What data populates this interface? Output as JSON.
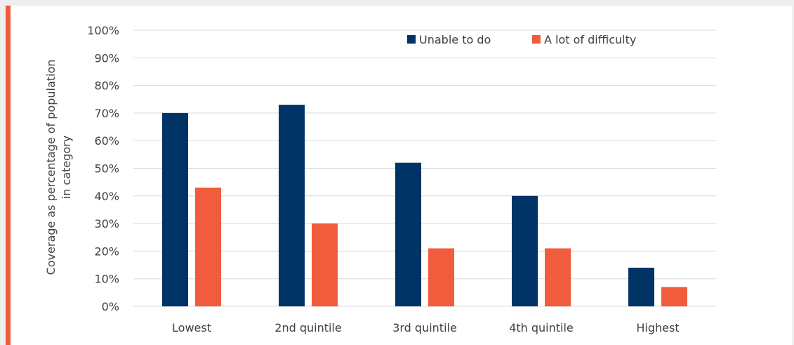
{
  "colors": {
    "accent": "#f05c3c",
    "series_unable": "#003366",
    "series_difficulty": "#f05c3c",
    "grid": "#d9d9d9",
    "text": "#404040"
  },
  "chart_data": {
    "type": "bar",
    "categories": [
      "Lowest",
      "2nd quintile",
      "3rd quintile",
      "4th quintile",
      "Highest"
    ],
    "series": [
      {
        "name": "Unable to do",
        "values": [
          70,
          73,
          52,
          40,
          14
        ]
      },
      {
        "name": "A lot of difficulty",
        "values": [
          43,
          30,
          21,
          21,
          7
        ]
      }
    ],
    "ylabel_lines": [
      "Coverage as percentage of population",
      "in category"
    ],
    "yticks": [
      "0%",
      "10%",
      "20%",
      "30%",
      "40%",
      "50%",
      "60%",
      "70%",
      "80%",
      "90%",
      "100%"
    ],
    "ylim": [
      0,
      100
    ],
    "grid": true,
    "legend_position": "top-right"
  }
}
